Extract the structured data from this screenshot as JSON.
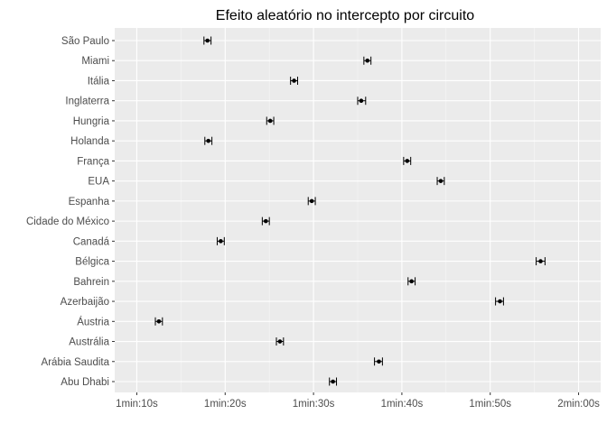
{
  "chart_data": {
    "type": "errorbar",
    "title": "Efeito aleatório no intercepto por circuito",
    "xlabel": "",
    "ylabel": "",
    "x_ticks": [
      {
        "value": 70,
        "label": "1min:10s"
      },
      {
        "value": 80,
        "label": "1min:20s"
      },
      {
        "value": 90,
        "label": "1min:30s"
      },
      {
        "value": 100,
        "label": "1min:40s"
      },
      {
        "value": 110,
        "label": "1min:50s"
      },
      {
        "value": 120,
        "label": "2min:00s"
      }
    ],
    "xlim": [
      67.5,
      122.5
    ],
    "grid": true,
    "points": [
      {
        "circuit": "São Paulo",
        "value": 78.0,
        "lower": 77.6,
        "upper": 78.4
      },
      {
        "circuit": "Miami",
        "value": 96.1,
        "lower": 95.7,
        "upper": 96.5
      },
      {
        "circuit": "Itália",
        "value": 87.8,
        "lower": 87.4,
        "upper": 88.2
      },
      {
        "circuit": "Inglaterra",
        "value": 95.4,
        "lower": 95.0,
        "upper": 95.9
      },
      {
        "circuit": "Hungria",
        "value": 85.1,
        "lower": 84.7,
        "upper": 85.5
      },
      {
        "circuit": "Holanda",
        "value": 78.1,
        "lower": 77.7,
        "upper": 78.5
      },
      {
        "circuit": "França",
        "value": 100.6,
        "lower": 100.2,
        "upper": 101.0
      },
      {
        "circuit": "EUA",
        "value": 104.4,
        "lower": 104.0,
        "upper": 104.8
      },
      {
        "circuit": "Espanha",
        "value": 89.8,
        "lower": 89.4,
        "upper": 90.2
      },
      {
        "circuit": "Cidade do México",
        "value": 84.6,
        "lower": 84.2,
        "upper": 85.0
      },
      {
        "circuit": "Canadá",
        "value": 79.5,
        "lower": 79.1,
        "upper": 79.9
      },
      {
        "circuit": "Bélgica",
        "value": 115.7,
        "lower": 115.2,
        "upper": 116.2
      },
      {
        "circuit": "Bahrein",
        "value": 101.1,
        "lower": 100.7,
        "upper": 101.5
      },
      {
        "circuit": "Azerbaijão",
        "value": 111.1,
        "lower": 110.6,
        "upper": 111.5
      },
      {
        "circuit": "Áustria",
        "value": 72.5,
        "lower": 72.1,
        "upper": 72.9
      },
      {
        "circuit": "Austrália",
        "value": 86.2,
        "lower": 85.8,
        "upper": 86.6
      },
      {
        "circuit": "Arábia Saudita",
        "value": 97.4,
        "lower": 96.9,
        "upper": 97.8
      },
      {
        "circuit": "Abu Dhabi",
        "value": 92.2,
        "lower": 91.8,
        "upper": 92.6
      }
    ]
  }
}
